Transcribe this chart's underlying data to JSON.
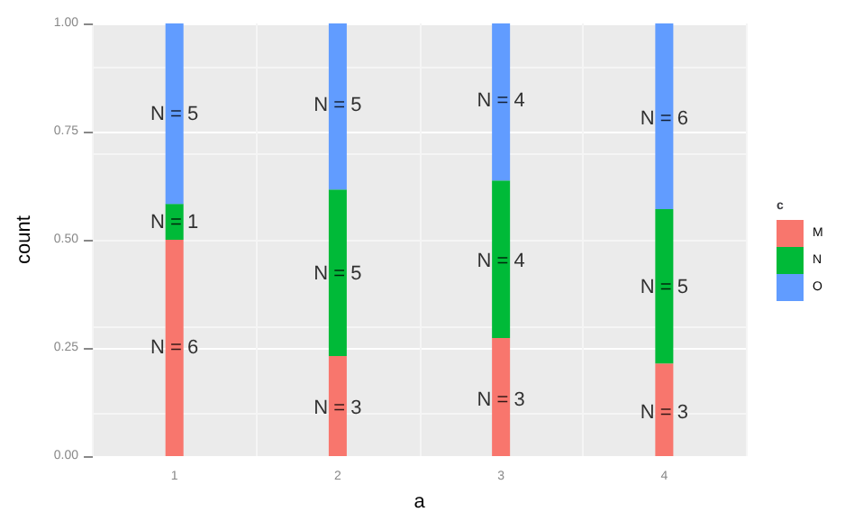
{
  "chart_data": {
    "type": "bar",
    "stacked": true,
    "xlabel": "a",
    "ylabel": "count",
    "legend_title": "c",
    "legend": "right",
    "grid": true,
    "categories": [
      "1",
      "2",
      "3",
      "4"
    ],
    "series": [
      {
        "name": "M",
        "color": "#f8766d",
        "values": [
          0.5,
          0.231,
          0.273,
          0.214
        ]
      },
      {
        "name": "N",
        "color": "#00ba38",
        "values": [
          0.083,
          0.385,
          0.364,
          0.357
        ]
      },
      {
        "name": "O",
        "color": "#619cff",
        "values": [
          0.417,
          0.385,
          0.364,
          0.429
        ]
      }
    ],
    "annotations": [
      {
        "text": "N = 6",
        "x": "1",
        "y": 0.25
      },
      {
        "text": "N = 1",
        "x": "1",
        "y": 0.54
      },
      {
        "text": "N = 5",
        "x": "1",
        "y": 0.79
      },
      {
        "text": "N = 3",
        "x": "2",
        "y": 0.11
      },
      {
        "text": "N = 5",
        "x": "2",
        "y": 0.42
      },
      {
        "text": "N = 5",
        "x": "2",
        "y": 0.81
      },
      {
        "text": "N = 3",
        "x": "3",
        "y": 0.13
      },
      {
        "text": "N = 4",
        "x": "3",
        "y": 0.45
      },
      {
        "text": "N = 4",
        "x": "3",
        "y": 0.82
      },
      {
        "text": "N = 3",
        "x": "4",
        "y": 0.1
      },
      {
        "text": "N = 5",
        "x": "4",
        "y": 0.39
      },
      {
        "text": "N = 6",
        "x": "4",
        "y": 0.78
      }
    ],
    "ylim": [
      0,
      1
    ],
    "yticks": [
      {
        "value": 0,
        "label": "0.00"
      },
      {
        "value": 0.25,
        "label": "0.25"
      },
      {
        "value": 0.5,
        "label": "0.50"
      },
      {
        "value": 0.75,
        "label": "0.75"
      },
      {
        "value": 1,
        "label": "1.00"
      }
    ]
  }
}
